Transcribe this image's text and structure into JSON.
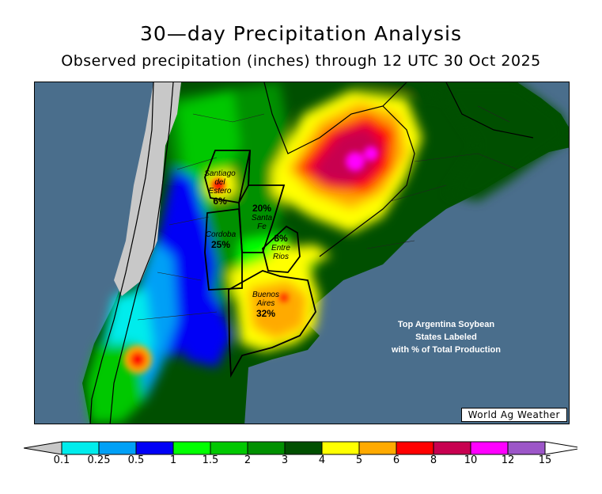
{
  "header": {
    "title": "30—day Precipitation Analysis",
    "subtitle": "Observed precipitation (inches) through 12 UTC 30 Oct 2025"
  },
  "map": {
    "note_lines": [
      "Top Argentina Soybean",
      "States Labeled",
      "with % of Total Production"
    ],
    "brand": "World Ag Weather",
    "provinces": [
      {
        "name_lines": [
          "Santiago",
          "del",
          "Estero"
        ],
        "pct": "6%"
      },
      {
        "name_lines": [
          "Santa",
          "Fe"
        ],
        "pct": "20%"
      },
      {
        "name_lines": [
          "Cordoba"
        ],
        "pct": "25%"
      },
      {
        "name_lines": [
          "Entre",
          "Rios"
        ],
        "pct": "8%"
      },
      {
        "name_lines": [
          "Buenos",
          "Aires"
        ],
        "pct": "32%"
      }
    ]
  },
  "legend": {
    "tick_labels": [
      "0.1",
      "0.25",
      "0.5",
      "1",
      "1.5",
      "2",
      "3",
      "4",
      "5",
      "6",
      "8",
      "10",
      "12",
      "15"
    ],
    "colors": [
      "#00ecec",
      "#00a0f6",
      "#0000f6",
      "#00ff00",
      "#00c800",
      "#009000",
      "#004f00",
      "#ffff00",
      "#ffaa00",
      "#ff0000",
      "#c80050",
      "#ff00ff",
      "#9c56c8"
    ],
    "low_color": "#c8c8c8",
    "high_color": "#ffffff",
    "ocean_color": "#4a6e8c"
  }
}
